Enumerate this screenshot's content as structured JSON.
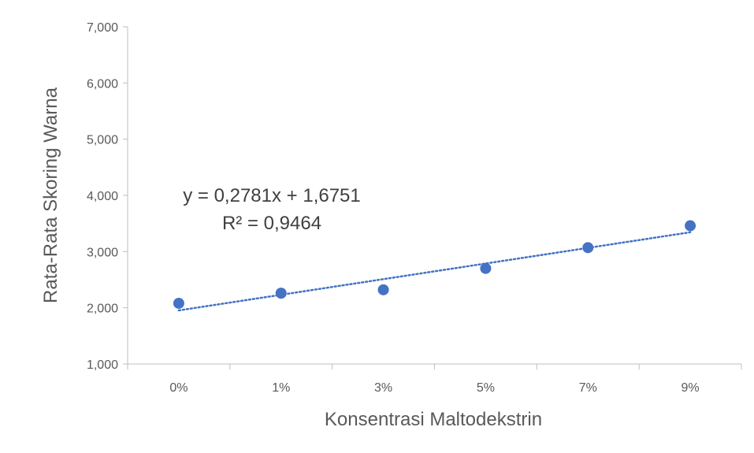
{
  "chart_data": {
    "type": "scatter",
    "title": "",
    "xlabel": "Konsentrasi Maltodekstrin",
    "ylabel": "Rata-Rata Skoring Warna",
    "categories": [
      "0%",
      "1%",
      "3%",
      "5%",
      "7%",
      "9%"
    ],
    "series": [
      {
        "values": [
          2.08,
          2.26,
          2.32,
          2.7,
          3.07,
          3.46
        ]
      }
    ],
    "trendline": {
      "type": "linear",
      "slope": 0.2781,
      "intercept": 1.6751,
      "equation": "y = 0,2781x + 1,6751",
      "r_squared": "R² = 0,9464",
      "style": "dotted"
    },
    "ylim": [
      1,
      7
    ],
    "yticks": [
      1,
      2,
      3,
      4,
      5,
      6,
      7
    ],
    "ytick_labels": [
      "1,000",
      "2,000",
      "3,000",
      "4,000",
      "5,000",
      "6,000",
      "7,000"
    ],
    "grid": false,
    "legend": "none",
    "colors": {
      "marker": "#4472C4",
      "trendline": "#4472C4",
      "axis": "#BFBFBF",
      "text": "#595959"
    }
  }
}
